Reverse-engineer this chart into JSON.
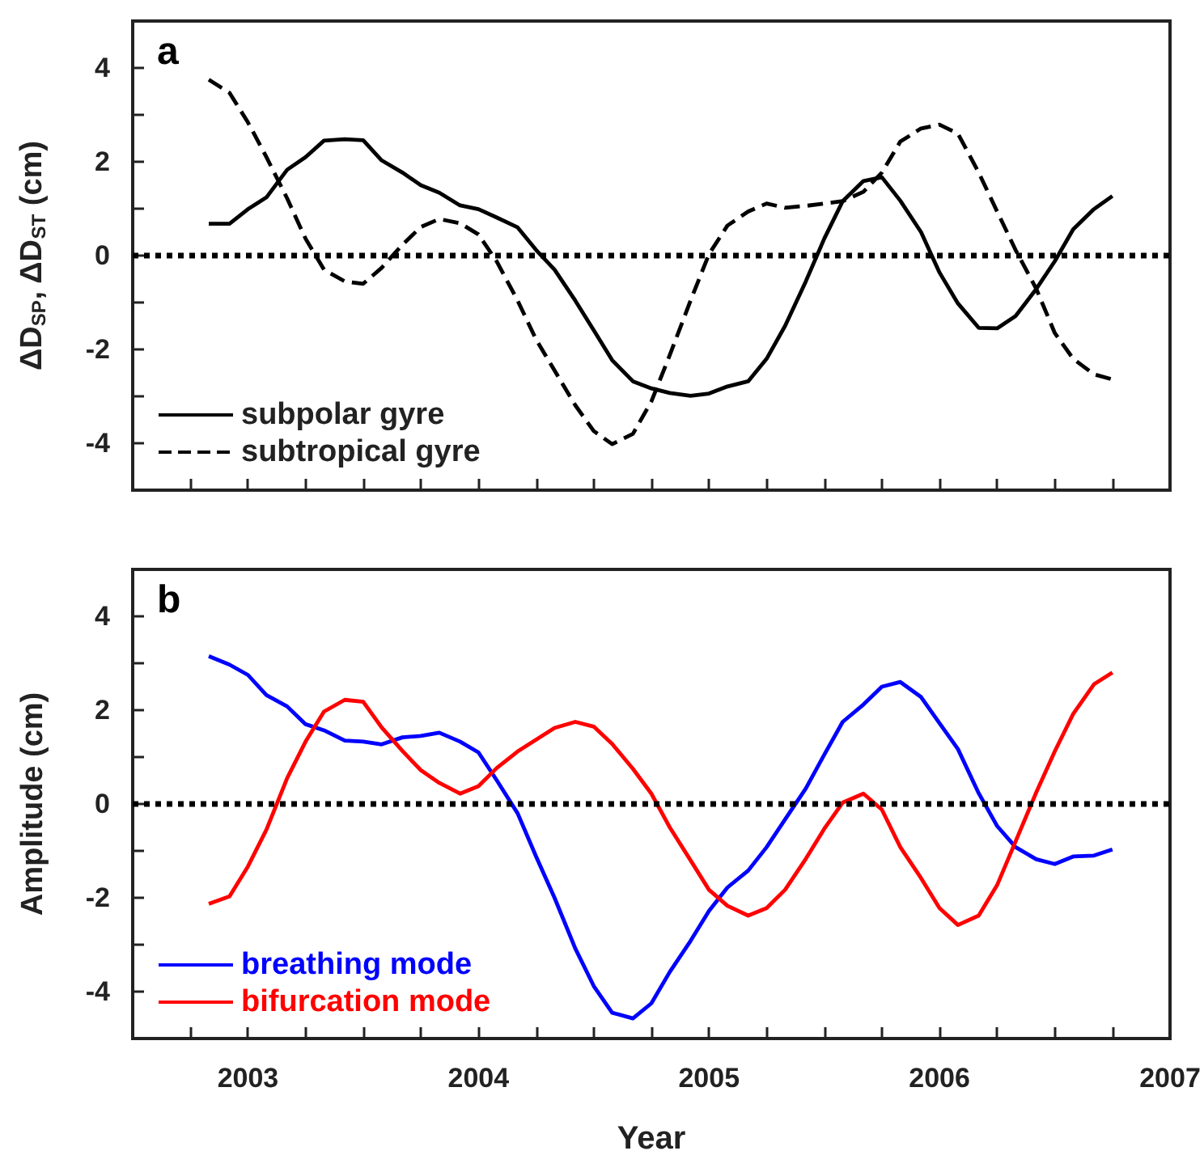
{
  "chart_data": [
    {
      "type": "line",
      "title": "a",
      "ylabel": "ΔD$_{SP}$, ΔD$_{ST}$ (cm)",
      "xlim": [
        2002.5,
        2007
      ],
      "xticks": [
        {
          "value": 2002.75,
          "label": null
        },
        2003,
        {
          "value": 2003.25,
          "label": null
        },
        {
          "value": 2003.5,
          "label": null
        },
        {
          "value": 2003.75,
          "label": null
        },
        2004,
        {
          "value": 2004.25,
          "label": null
        },
        {
          "value": 2004.5,
          "label": null
        },
        {
          "value": 2004.75,
          "label": null
        },
        2005,
        {
          "value": 2005.25,
          "label": null
        },
        {
          "value": 2005.5,
          "label": null
        },
        {
          "value": 2005.75,
          "label": null
        },
        2006,
        {
          "value": 2006.25,
          "label": null
        },
        {
          "value": 2006.5,
          "label": null
        },
        {
          "value": 2006.75,
          "label": null
        },
        2007
      ],
      "ylim": [
        -5,
        5
      ],
      "yticks": [
        -4,
        {
          "value": -3,
          "label": null
        },
        -2,
        {
          "value": -1,
          "label": null
        },
        0,
        {
          "value": 1,
          "label": null
        },
        2,
        {
          "value": 3,
          "label": null
        },
        4
      ],
      "tick_labels": "y",
      "legend": "bottom left",
      "grid": false,
      "marker": "none",
      "x": [
        2002.83,
        2002.92,
        2003.0,
        2003.08,
        2003.17,
        2003.25,
        2003.33,
        2003.42,
        2003.5,
        2003.58,
        2003.67,
        2003.75,
        2003.83,
        2003.92,
        2004.0,
        2004.08,
        2004.17,
        2004.25,
        2004.33,
        2004.42,
        2004.5,
        2004.58,
        2004.67,
        2004.75,
        2004.83,
        2004.92,
        2005.0,
        2005.08,
        2005.17,
        2005.25,
        2005.33,
        2005.42,
        2005.5,
        2005.58,
        2005.67,
        2005.75,
        2005.83,
        2005.92,
        2006.0,
        2006.08,
        2006.17,
        2006.25,
        2006.33,
        2006.42,
        2006.5,
        2006.58,
        2006.67,
        2006.75
      ],
      "series": [
        {
          "name": "subpolar gyre",
          "color": "#000000",
          "line_style": "solid",
          "values": [
            0.68,
            0.68,
            0.99,
            1.24,
            1.83,
            2.1,
            2.45,
            2.48,
            2.46,
            2.03,
            1.77,
            1.5,
            1.34,
            1.07,
            0.99,
            0.81,
            0.6,
            0.12,
            -0.3,
            -0.96,
            -1.59,
            -2.23,
            -2.68,
            -2.83,
            -2.93,
            -2.99,
            -2.94,
            -2.79,
            -2.68,
            -2.2,
            -1.5,
            -0.55,
            0.36,
            1.16,
            1.59,
            1.67,
            1.17,
            0.5,
            -0.36,
            -1.02,
            -1.54,
            -1.55,
            -1.29,
            -0.71,
            -0.12,
            0.56,
            0.99,
            1.27
          ]
        },
        {
          "name": "subtropical gyre",
          "color": "#000000",
          "line_style": "dashed",
          "values": [
            3.75,
            3.47,
            2.84,
            2.1,
            1.22,
            0.36,
            -0.3,
            -0.55,
            -0.6,
            -0.26,
            0.23,
            0.61,
            0.78,
            0.69,
            0.45,
            -0.13,
            -0.96,
            -1.79,
            -2.45,
            -3.19,
            -3.74,
            -4.02,
            -3.8,
            -3.11,
            -2.12,
            -0.96,
            0.03,
            0.64,
            0.94,
            1.11,
            1.02,
            1.06,
            1.11,
            1.16,
            1.36,
            1.77,
            2.43,
            2.71,
            2.79,
            2.6,
            1.77,
            0.94,
            0.12,
            -0.71,
            -1.65,
            -2.2,
            -2.53,
            -2.64
          ]
        }
      ],
      "ref_lines": [
        {
          "axis": "y",
          "value": 0,
          "label": null,
          "color": "#000000",
          "line_style": "dotted"
        }
      ]
    },
    {
      "type": "line",
      "title": "b",
      "xlabel": "Year",
      "ylabel": "Amplitude (cm)",
      "xlim": [
        2002.5,
        2007
      ],
      "xticks": [
        {
          "value": 2002.75,
          "label": null
        },
        2003,
        {
          "value": 2003.25,
          "label": null
        },
        {
          "value": 2003.5,
          "label": null
        },
        {
          "value": 2003.75,
          "label": null
        },
        2004,
        {
          "value": 2004.25,
          "label": null
        },
        {
          "value": 2004.5,
          "label": null
        },
        {
          "value": 2004.75,
          "label": null
        },
        2005,
        {
          "value": 2005.25,
          "label": null
        },
        {
          "value": 2005.5,
          "label": null
        },
        {
          "value": 2005.75,
          "label": null
        },
        2006,
        {
          "value": 2006.25,
          "label": null
        },
        {
          "value": 2006.5,
          "label": null
        },
        {
          "value": 2006.75,
          "label": null
        },
        2007
      ],
      "ylim": [
        -5,
        5
      ],
      "yticks": [
        -4,
        {
          "value": -3,
          "label": null
        },
        -2,
        {
          "value": -1,
          "label": null
        },
        0,
        {
          "value": 1,
          "label": null
        },
        2,
        {
          "value": 3,
          "label": null
        },
        4
      ],
      "legend": "bottom left",
      "grid": false,
      "marker": "none",
      "x": [
        2002.83,
        2002.92,
        2003.0,
        2003.08,
        2003.17,
        2003.25,
        2003.33,
        2003.42,
        2003.5,
        2003.58,
        2003.67,
        2003.75,
        2003.83,
        2003.92,
        2004.0,
        2004.08,
        2004.17,
        2004.25,
        2004.33,
        2004.42,
        2004.5,
        2004.58,
        2004.67,
        2004.75,
        2004.83,
        2004.92,
        2005.0,
        2005.08,
        2005.17,
        2005.25,
        2005.33,
        2005.42,
        2005.5,
        2005.58,
        2005.67,
        2005.75,
        2005.83,
        2005.92,
        2006.0,
        2006.08,
        2006.17,
        2006.25,
        2006.33,
        2006.42,
        2006.5,
        2006.58,
        2006.67,
        2006.75
      ],
      "series": [
        {
          "name": "breathing mode",
          "color": "#0000ff",
          "line_style": "solid",
          "values": [
            3.15,
            2.97,
            2.75,
            2.32,
            2.08,
            1.7,
            1.57,
            1.35,
            1.33,
            1.27,
            1.42,
            1.45,
            1.52,
            1.33,
            1.1,
            0.5,
            -0.2,
            -1.12,
            -2.0,
            -3.08,
            -3.88,
            -4.45,
            -4.57,
            -4.25,
            -3.58,
            -2.92,
            -2.28,
            -1.78,
            -1.42,
            -0.92,
            -0.33,
            0.33,
            1.05,
            1.75,
            2.12,
            2.5,
            2.6,
            2.28,
            1.72,
            1.17,
            0.23,
            -0.47,
            -0.92,
            -1.18,
            -1.28,
            -1.12,
            -1.1,
            -0.97
          ]
        },
        {
          "name": "bifurcation mode",
          "color": "#ff0000",
          "line_style": "solid",
          "values": [
            -2.13,
            -1.97,
            -1.33,
            -0.55,
            0.55,
            1.33,
            1.97,
            2.22,
            2.18,
            1.63,
            1.13,
            0.72,
            0.45,
            0.22,
            0.38,
            0.77,
            1.12,
            1.37,
            1.62,
            1.75,
            1.65,
            1.28,
            0.75,
            0.22,
            -0.5,
            -1.2,
            -1.83,
            -2.17,
            -2.38,
            -2.22,
            -1.83,
            -1.17,
            -0.53,
            0.03,
            0.22,
            -0.12,
            -0.92,
            -1.58,
            -2.22,
            -2.58,
            -2.38,
            -1.73,
            -0.8,
            0.25,
            1.12,
            1.92,
            2.55,
            2.8
          ]
        }
      ],
      "ref_lines": [
        {
          "axis": "y",
          "value": 0,
          "label": null,
          "color": "#000000",
          "line_style": "dotted"
        }
      ]
    }
  ]
}
